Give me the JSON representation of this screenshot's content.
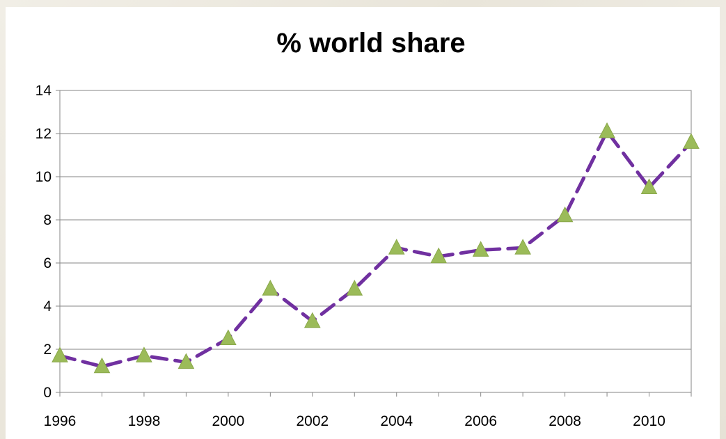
{
  "chart_data": {
    "type": "line",
    "title": "% world share",
    "xlabel": "",
    "ylabel": "",
    "x": [
      1996,
      1997,
      1998,
      1999,
      2000,
      2001,
      2002,
      2003,
      2004,
      2005,
      2006,
      2007,
      2008,
      2009,
      2010,
      2011
    ],
    "series": [
      {
        "values": [
          1.7,
          1.2,
          1.7,
          1.4,
          2.5,
          4.8,
          3.3,
          4.8,
          6.7,
          6.3,
          6.6,
          6.7,
          8.2,
          12.1,
          9.5,
          11.6
        ],
        "line_color": "#7030a0",
        "line_style": "dashed",
        "marker": "triangle",
        "marker_color": "#9bbb59"
      }
    ],
    "xlim": [
      1996,
      2011
    ],
    "ylim": [
      0,
      14
    ],
    "x_ticks": [
      "1996",
      "1998",
      "2000",
      "2002",
      "2004",
      "2006",
      "2008",
      "2010"
    ],
    "y_ticks": [
      "0",
      "2",
      "4",
      "6",
      "8",
      "10",
      "12",
      "14"
    ],
    "grid": "horizontal",
    "legend": "none"
  }
}
